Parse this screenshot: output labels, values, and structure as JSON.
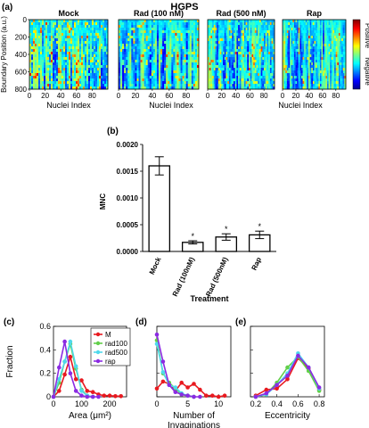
{
  "figure": {
    "title": "HGPS",
    "labels": {
      "a": "(a)",
      "b": "(b)",
      "c": "(c)",
      "d": "(d)",
      "e": "(e)"
    }
  },
  "colors": {
    "mock": "#e8191f",
    "rad100": "#62cf4a",
    "rad500": "#4fd9ec",
    "rap": "#8b2be2"
  },
  "chart_data": [
    {
      "id": "a",
      "type": "heatmap",
      "panels": [
        "Mock",
        "Rad (100 nM)",
        "Rad (500 nM)",
        "Rap"
      ],
      "ylabel": "Boundary Position (a.u.)",
      "xlabel": "Nuclei Index",
      "yticks": [
        "0",
        "200",
        "400",
        "600",
        "800"
      ],
      "xticks_first": [
        "0",
        "20",
        "40",
        "60",
        "80"
      ],
      "xticks_other": [
        "0",
        "20",
        "40",
        "60",
        "80"
      ],
      "colorbar": {
        "top": "Positive",
        "bottom": "Negative"
      },
      "ylim": [
        0,
        800
      ],
      "xlim": [
        0,
        100
      ]
    },
    {
      "id": "b",
      "type": "bar",
      "categories": [
        "Mock",
        "Rad (100nM)",
        "Rad (500nM)",
        "Rap"
      ],
      "values": [
        0.0016,
        0.00017,
        0.00027,
        0.00031
      ],
      "errors": [
        0.00017,
        3e-05,
        6e-05,
        7e-05
      ],
      "significance": [
        "",
        "*",
        "*",
        "*"
      ],
      "ylabel": "MNC",
      "xlabel": "Treatment",
      "ylim": [
        0,
        0.002
      ],
      "yticks": [
        "0.0000",
        "0.0005",
        "0.0010",
        "0.0015",
        "0.0020"
      ]
    },
    {
      "id": "c",
      "type": "line",
      "ylabel": "Fraction",
      "xlabel": "Area (μm²)",
      "xlim": [
        0,
        260
      ],
      "ylim": [
        0,
        0.6
      ],
      "xticks": [
        "0",
        "100",
        "200"
      ],
      "yticks": [
        "0",
        "0.2",
        "0.4",
        "0.6"
      ],
      "legend": [
        "M",
        "rad100",
        "rad500",
        "rap"
      ],
      "series": [
        {
          "name": "M",
          "x": [
            0,
            20,
            40,
            60,
            80,
            100,
            120,
            140,
            160,
            180,
            200,
            220,
            240
          ],
          "y": [
            0,
            0.05,
            0.19,
            0.34,
            0.15,
            0.14,
            0.05,
            0.04,
            0.02,
            0.01,
            0.01,
            0.005,
            0.005
          ]
        },
        {
          "name": "rad100",
          "x": [
            0,
            20,
            40,
            60,
            80,
            100,
            120,
            140
          ],
          "y": [
            0,
            0.12,
            0.3,
            0.45,
            0.24,
            0.06,
            0.01,
            0
          ]
        },
        {
          "name": "rad500",
          "x": [
            0,
            20,
            40,
            60,
            80,
            100,
            120,
            140
          ],
          "y": [
            0,
            0.15,
            0.3,
            0.47,
            0.26,
            0.05,
            0.01,
            0
          ]
        },
        {
          "name": "rap",
          "x": [
            0,
            20,
            40,
            60,
            80,
            100,
            120,
            140,
            160
          ],
          "y": [
            0,
            0.25,
            0.47,
            0.2,
            0.05,
            0.01,
            0,
            0,
            0
          ]
        }
      ]
    },
    {
      "id": "d",
      "type": "line",
      "xlabel": "Number of\nInvaginations",
      "xlim": [
        0,
        12
      ],
      "ylim": [
        0,
        0.6
      ],
      "xticks": [
        "0",
        "5",
        "10"
      ],
      "series": [
        {
          "name": "M",
          "x": [
            0,
            1,
            2,
            3,
            4,
            5,
            6,
            7,
            8,
            9,
            10,
            11
          ],
          "y": [
            0.07,
            0.13,
            0.11,
            0.05,
            0.12,
            0.08,
            0.11,
            0.06,
            0.01,
            0.01,
            0,
            0.01
          ]
        },
        {
          "name": "rad100",
          "x": [
            0,
            1,
            2,
            3,
            4,
            5,
            6
          ],
          "y": [
            0.48,
            0.2,
            0.12,
            0.07,
            0.02,
            0.01,
            0
          ]
        },
        {
          "name": "rad500",
          "x": [
            0,
            1,
            2,
            3,
            4,
            5,
            6
          ],
          "y": [
            0.45,
            0.21,
            0.1,
            0.08,
            0.03,
            0.01,
            0
          ]
        },
        {
          "name": "rap",
          "x": [
            0,
            1,
            2,
            3,
            4,
            5,
            6,
            7
          ],
          "y": [
            0.53,
            0.3,
            0.1,
            0.04,
            0.02,
            0.01,
            0,
            0
          ]
        }
      ]
    },
    {
      "id": "e",
      "type": "line",
      "xlabel": "Eccentricity",
      "xlim": [
        0.15,
        0.85
      ],
      "ylim": [
        0,
        0.6
      ],
      "xticks": [
        "0.2",
        "0.4",
        "0.6",
        "0.8"
      ],
      "series": [
        {
          "name": "M",
          "x": [
            0.2,
            0.3,
            0.4,
            0.5,
            0.6,
            0.7,
            0.8
          ],
          "y": [
            0.01,
            0.06,
            0.07,
            0.15,
            0.33,
            0.24,
            0.06
          ]
        },
        {
          "name": "rad100",
          "x": [
            0.2,
            0.3,
            0.4,
            0.5,
            0.6,
            0.7,
            0.8
          ],
          "y": [
            0,
            0.02,
            0.12,
            0.25,
            0.34,
            0.22,
            0.05
          ]
        },
        {
          "name": "rad500",
          "x": [
            0.2,
            0.3,
            0.4,
            0.5,
            0.6,
            0.7,
            0.8
          ],
          "y": [
            0,
            0.02,
            0.1,
            0.2,
            0.37,
            0.25,
            0.07
          ]
        },
        {
          "name": "rap",
          "x": [
            0.2,
            0.3,
            0.4,
            0.5,
            0.6,
            0.7,
            0.8
          ],
          "y": [
            0,
            0.03,
            0.1,
            0.18,
            0.35,
            0.25,
            0.08
          ]
        }
      ]
    }
  ]
}
